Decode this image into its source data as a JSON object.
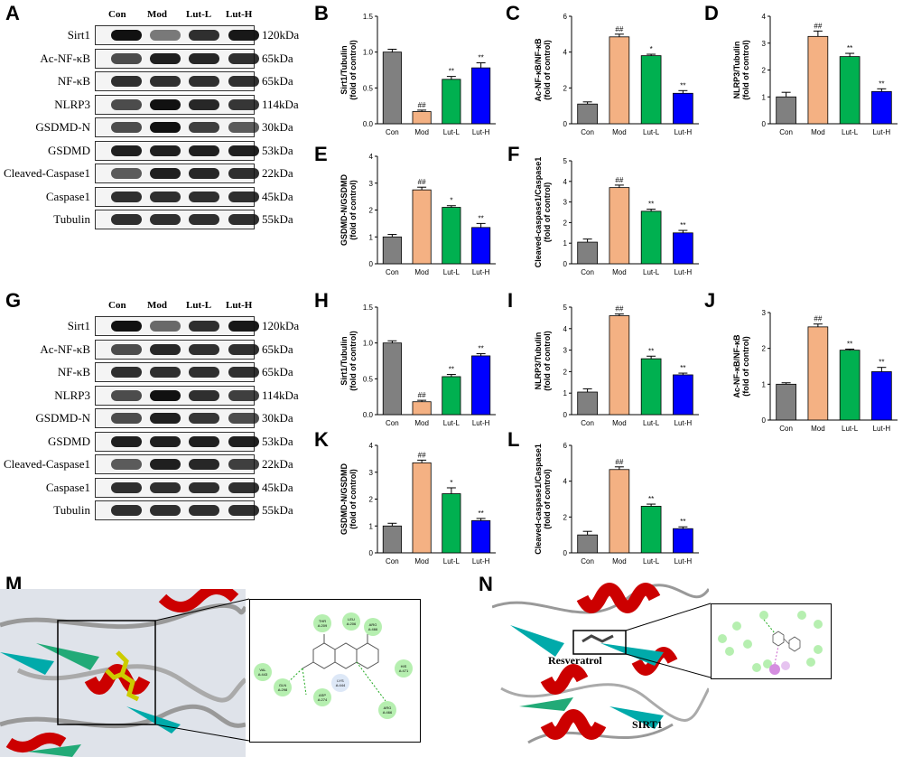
{
  "panels": {
    "A": "A",
    "B": "B",
    "C": "C",
    "D": "D",
    "E": "E",
    "F": "F",
    "G": "G",
    "H": "H",
    "I": "I",
    "J": "J",
    "K": "K",
    "L": "L",
    "M": "M",
    "N": "N"
  },
  "blot_top": {
    "groups": [
      "Con",
      "Mod",
      "Lut-L",
      "Lut-H"
    ],
    "rows": [
      {
        "label": "Sirt1",
        "kda": "120kDa",
        "intensity": [
          1,
          0.3,
          0.8,
          0.95
        ]
      },
      {
        "label": "Ac-NF-κB",
        "kda": "65kDa",
        "intensity": [
          0.6,
          0.9,
          0.85,
          0.8
        ]
      },
      {
        "label": "NF-κB",
        "kda": "65kDa",
        "intensity": [
          0.8,
          0.8,
          0.8,
          0.8
        ]
      },
      {
        "label": "NLRP3",
        "kda": "114kDa",
        "intensity": [
          0.6,
          1,
          0.85,
          0.75
        ]
      },
      {
        "label": "GSDMD-N",
        "kda": "30kDa",
        "intensity": [
          0.6,
          1,
          0.7,
          0.5
        ]
      },
      {
        "label": "GSDMD",
        "kda": "53kDa",
        "intensity": [
          0.9,
          0.9,
          0.9,
          0.9
        ]
      },
      {
        "label": "Cleaved-Caspase1",
        "kda": "22kDa",
        "intensity": [
          0.5,
          0.9,
          0.85,
          0.8
        ]
      },
      {
        "label": "Caspase1",
        "kda": "45kDa",
        "intensity": [
          0.8,
          0.8,
          0.8,
          0.8
        ]
      },
      {
        "label": "Tubulin",
        "kda": "55kDa",
        "intensity": [
          0.8,
          0.8,
          0.8,
          0.8
        ]
      }
    ]
  },
  "blot_bottom": {
    "groups": [
      "Con",
      "Mod",
      "Lut-L",
      "Lut-H"
    ],
    "rows": [
      {
        "label": "Sirt1",
        "kda": "120kDa",
        "intensity": [
          1,
          0.4,
          0.8,
          0.95
        ]
      },
      {
        "label": "Ac-NF-κB",
        "kda": "65kDa",
        "intensity": [
          0.6,
          0.85,
          0.8,
          0.8
        ]
      },
      {
        "label": "NF-κB",
        "kda": "65kDa",
        "intensity": [
          0.8,
          0.8,
          0.8,
          0.8
        ]
      },
      {
        "label": "NLRP3",
        "kda": "114kDa",
        "intensity": [
          0.6,
          1,
          0.8,
          0.7
        ]
      },
      {
        "label": "GSDMD-N",
        "kda": "30kDa",
        "intensity": [
          0.6,
          0.9,
          0.75,
          0.6
        ]
      },
      {
        "label": "GSDMD",
        "kda": "53kDa",
        "intensity": [
          0.9,
          0.9,
          0.9,
          0.9
        ]
      },
      {
        "label": "Cleaved-Caspase1",
        "kda": "22kDa",
        "intensity": [
          0.5,
          0.9,
          0.85,
          0.7
        ]
      },
      {
        "label": "Caspase1",
        "kda": "45kDa",
        "intensity": [
          0.8,
          0.8,
          0.8,
          0.8
        ]
      },
      {
        "label": "Tubulin",
        "kda": "55kDa",
        "intensity": [
          0.8,
          0.8,
          0.8,
          0.8
        ]
      }
    ]
  },
  "colors": [
    "#808080",
    "#f4b183",
    "#00b050",
    "#0000ff"
  ],
  "chart_data": [
    {
      "id": "B",
      "type": "bar",
      "categories": [
        "Con",
        "Mod",
        "Lut-L",
        "Lut-H"
      ],
      "values": [
        1.0,
        0.17,
        0.62,
        0.78
      ],
      "errors": [
        0.04,
        0.02,
        0.04,
        0.07
      ],
      "sig": [
        "",
        "##",
        "**",
        "**"
      ],
      "ylabel": "Sirt1/Tubulin\n(fold of control)",
      "ylim": [
        0,
        1.5
      ],
      "yticks": [
        0,
        0.5,
        1.0,
        1.5
      ],
      "ytick_labels": [
        "0.0",
        "0.5",
        "1.0",
        "1.5"
      ]
    },
    {
      "id": "C",
      "type": "bar",
      "categories": [
        "Con",
        "Mod",
        "Lut-L",
        "Lut-H"
      ],
      "values": [
        1.1,
        4.85,
        3.8,
        1.7
      ],
      "errors": [
        0.12,
        0.15,
        0.08,
        0.15
      ],
      "sig": [
        "",
        "##",
        "*",
        "**"
      ],
      "ylabel": "Ac-NF-κB/NF-κB\n(fold of control)",
      "ylim": [
        0,
        6
      ],
      "yticks": [
        0,
        2,
        4,
        6
      ],
      "ytick_labels": [
        "0",
        "2",
        "4",
        "6"
      ]
    },
    {
      "id": "D",
      "type": "bar",
      "categories": [
        "Con",
        "Mod",
        "Lut-L",
        "Lut-H"
      ],
      "values": [
        1.0,
        3.25,
        2.5,
        1.2
      ],
      "errors": [
        0.17,
        0.2,
        0.12,
        0.1
      ],
      "sig": [
        "",
        "##",
        "**",
        "**"
      ],
      "ylabel": "NLRP3/Tubulin\n(fold of control)",
      "ylim": [
        0,
        4
      ],
      "yticks": [
        0,
        1,
        2,
        3,
        4
      ],
      "ytick_labels": [
        "0",
        "1",
        "2",
        "3",
        "4"
      ]
    },
    {
      "id": "E",
      "type": "bar",
      "categories": [
        "Con",
        "Mod",
        "Lut-L",
        "Lut-H"
      ],
      "values": [
        1.0,
        2.75,
        2.1,
        1.35
      ],
      "errors": [
        0.09,
        0.1,
        0.06,
        0.15
      ],
      "sig": [
        "",
        "##",
        "*",
        "**"
      ],
      "ylabel": "GSDMD-N/GSDMD\n(fold of control)",
      "ylim": [
        0,
        4
      ],
      "yticks": [
        0,
        1,
        2,
        3,
        4
      ],
      "ytick_labels": [
        "0",
        "1",
        "2",
        "3",
        "4"
      ]
    },
    {
      "id": "F",
      "type": "bar",
      "categories": [
        "Con",
        "Mod",
        "Lut-L",
        "Lut-H"
      ],
      "values": [
        1.05,
        3.7,
        2.55,
        1.5
      ],
      "errors": [
        0.15,
        0.12,
        0.1,
        0.12
      ],
      "sig": [
        "",
        "##",
        "**",
        "**"
      ],
      "ylabel": "Cleaved-caspase1/Caspase1\n(fold of control)",
      "ylim": [
        0,
        5
      ],
      "yticks": [
        0,
        1,
        2,
        3,
        4,
        5
      ],
      "ytick_labels": [
        "0",
        "1",
        "2",
        "3",
        "4",
        "5"
      ]
    },
    {
      "id": "H",
      "type": "bar",
      "categories": [
        "Con",
        "Mod",
        "Lut-L",
        "Lut-H"
      ],
      "values": [
        1.0,
        0.18,
        0.53,
        0.82
      ],
      "errors": [
        0.03,
        0.02,
        0.03,
        0.03
      ],
      "sig": [
        "",
        "##",
        "**",
        "**"
      ],
      "ylabel": "Sirt1/Tubulin\n(fold of control)",
      "ylim": [
        0,
        1.5
      ],
      "yticks": [
        0,
        0.5,
        1.0,
        1.5
      ],
      "ytick_labels": [
        "0.0",
        "0.5",
        "1.0",
        "1.5"
      ]
    },
    {
      "id": "I",
      "type": "bar",
      "categories": [
        "Con",
        "Mod",
        "Lut-L",
        "Lut-H"
      ],
      "values": [
        1.05,
        4.6,
        2.6,
        1.85
      ],
      "errors": [
        0.15,
        0.08,
        0.12,
        0.08
      ],
      "sig": [
        "",
        "##",
        "**",
        "**"
      ],
      "ylabel": "NLRP3/Tubulin\n(fold of control)",
      "ylim": [
        0,
        5
      ],
      "yticks": [
        0,
        1,
        2,
        3,
        4,
        5
      ],
      "ytick_labels": [
        "0",
        "1",
        "2",
        "3",
        "4",
        "5"
      ]
    },
    {
      "id": "J",
      "type": "bar",
      "categories": [
        "Con",
        "Mod",
        "Lut-L",
        "Lut-H"
      ],
      "values": [
        1.0,
        2.6,
        1.95,
        1.35
      ],
      "errors": [
        0.04,
        0.08,
        0.03,
        0.12
      ],
      "sig": [
        "",
        "##",
        "**",
        "**"
      ],
      "ylabel": "Ac-NF-κB/NF-κB\n(fold of control)",
      "ylim": [
        0,
        3
      ],
      "yticks": [
        0,
        1,
        2,
        3
      ],
      "ytick_labels": [
        "0",
        "1",
        "2",
        "3"
      ]
    },
    {
      "id": "K",
      "type": "bar",
      "categories": [
        "Con",
        "Mod",
        "Lut-L",
        "Lut-H"
      ],
      "values": [
        1.0,
        3.35,
        2.2,
        1.2
      ],
      "errors": [
        0.1,
        0.1,
        0.22,
        0.08
      ],
      "sig": [
        "",
        "##",
        "*",
        "**"
      ],
      "ylabel": "GSDMD-N/GSDMD\n(fold of control)",
      "ylim": [
        0,
        4
      ],
      "yticks": [
        0,
        1,
        2,
        3,
        4
      ],
      "ytick_labels": [
        "0",
        "1",
        "2",
        "3",
        "4"
      ]
    },
    {
      "id": "L",
      "type": "bar",
      "categories": [
        "Con",
        "Mod",
        "Lut-L",
        "Lut-H"
      ],
      "values": [
        1.0,
        4.65,
        2.6,
        1.35
      ],
      "errors": [
        0.2,
        0.15,
        0.12,
        0.1
      ],
      "sig": [
        "",
        "##",
        "**",
        "**"
      ],
      "ylabel": "Cleaved-caspase1/Caspase1\n(fold of control)",
      "ylim": [
        0,
        6
      ],
      "yticks": [
        0,
        2,
        4,
        6
      ],
      "ytick_labels": [
        "0",
        "2",
        "4",
        "6"
      ]
    }
  ],
  "docking": {
    "m_residues": [
      "THR A:209",
      "LEU A:206",
      "ARG A:466",
      "HIS A:471",
      "VAL A:443",
      "GLN A:298",
      "LYS A:444",
      "ASP A:274",
      "ARG A:466"
    ],
    "n_label_resveratrol": "Resveratrol",
    "n_label_sirt1": "SIRT1"
  }
}
